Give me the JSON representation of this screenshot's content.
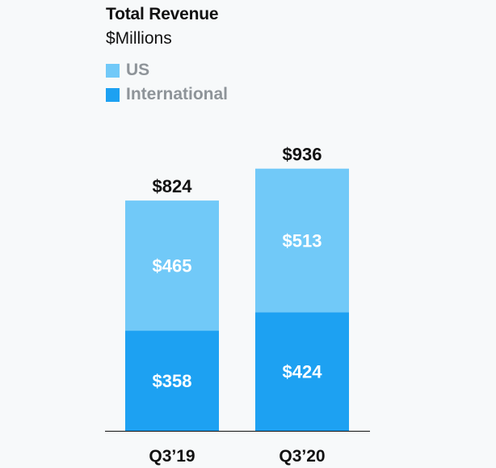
{
  "chart_data": {
    "type": "bar",
    "stacked": true,
    "title": "Total Revenue",
    "subtitle": "$Millions",
    "categories": [
      "Q3’19",
      "Q3’20"
    ],
    "series": [
      {
        "name": "International",
        "values": [
          358,
          424
        ],
        "labels": [
          "$358",
          "$424"
        ],
        "color": "#1da1f2"
      },
      {
        "name": "US",
        "values": [
          465,
          513
        ],
        "labels": [
          "$465",
          "$513"
        ],
        "color": "#71c9f8"
      }
    ],
    "totals": [
      824,
      936
    ],
    "total_labels": [
      "$824",
      "$936"
    ],
    "ylim": [
      0,
      1000
    ],
    "grid": false,
    "legend": {
      "position": "top-left",
      "items": [
        {
          "name": "US",
          "color": "#71c9f8"
        },
        {
          "name": "International",
          "color": "#1da1f2"
        }
      ]
    },
    "xlabel": "",
    "ylabel": ""
  }
}
